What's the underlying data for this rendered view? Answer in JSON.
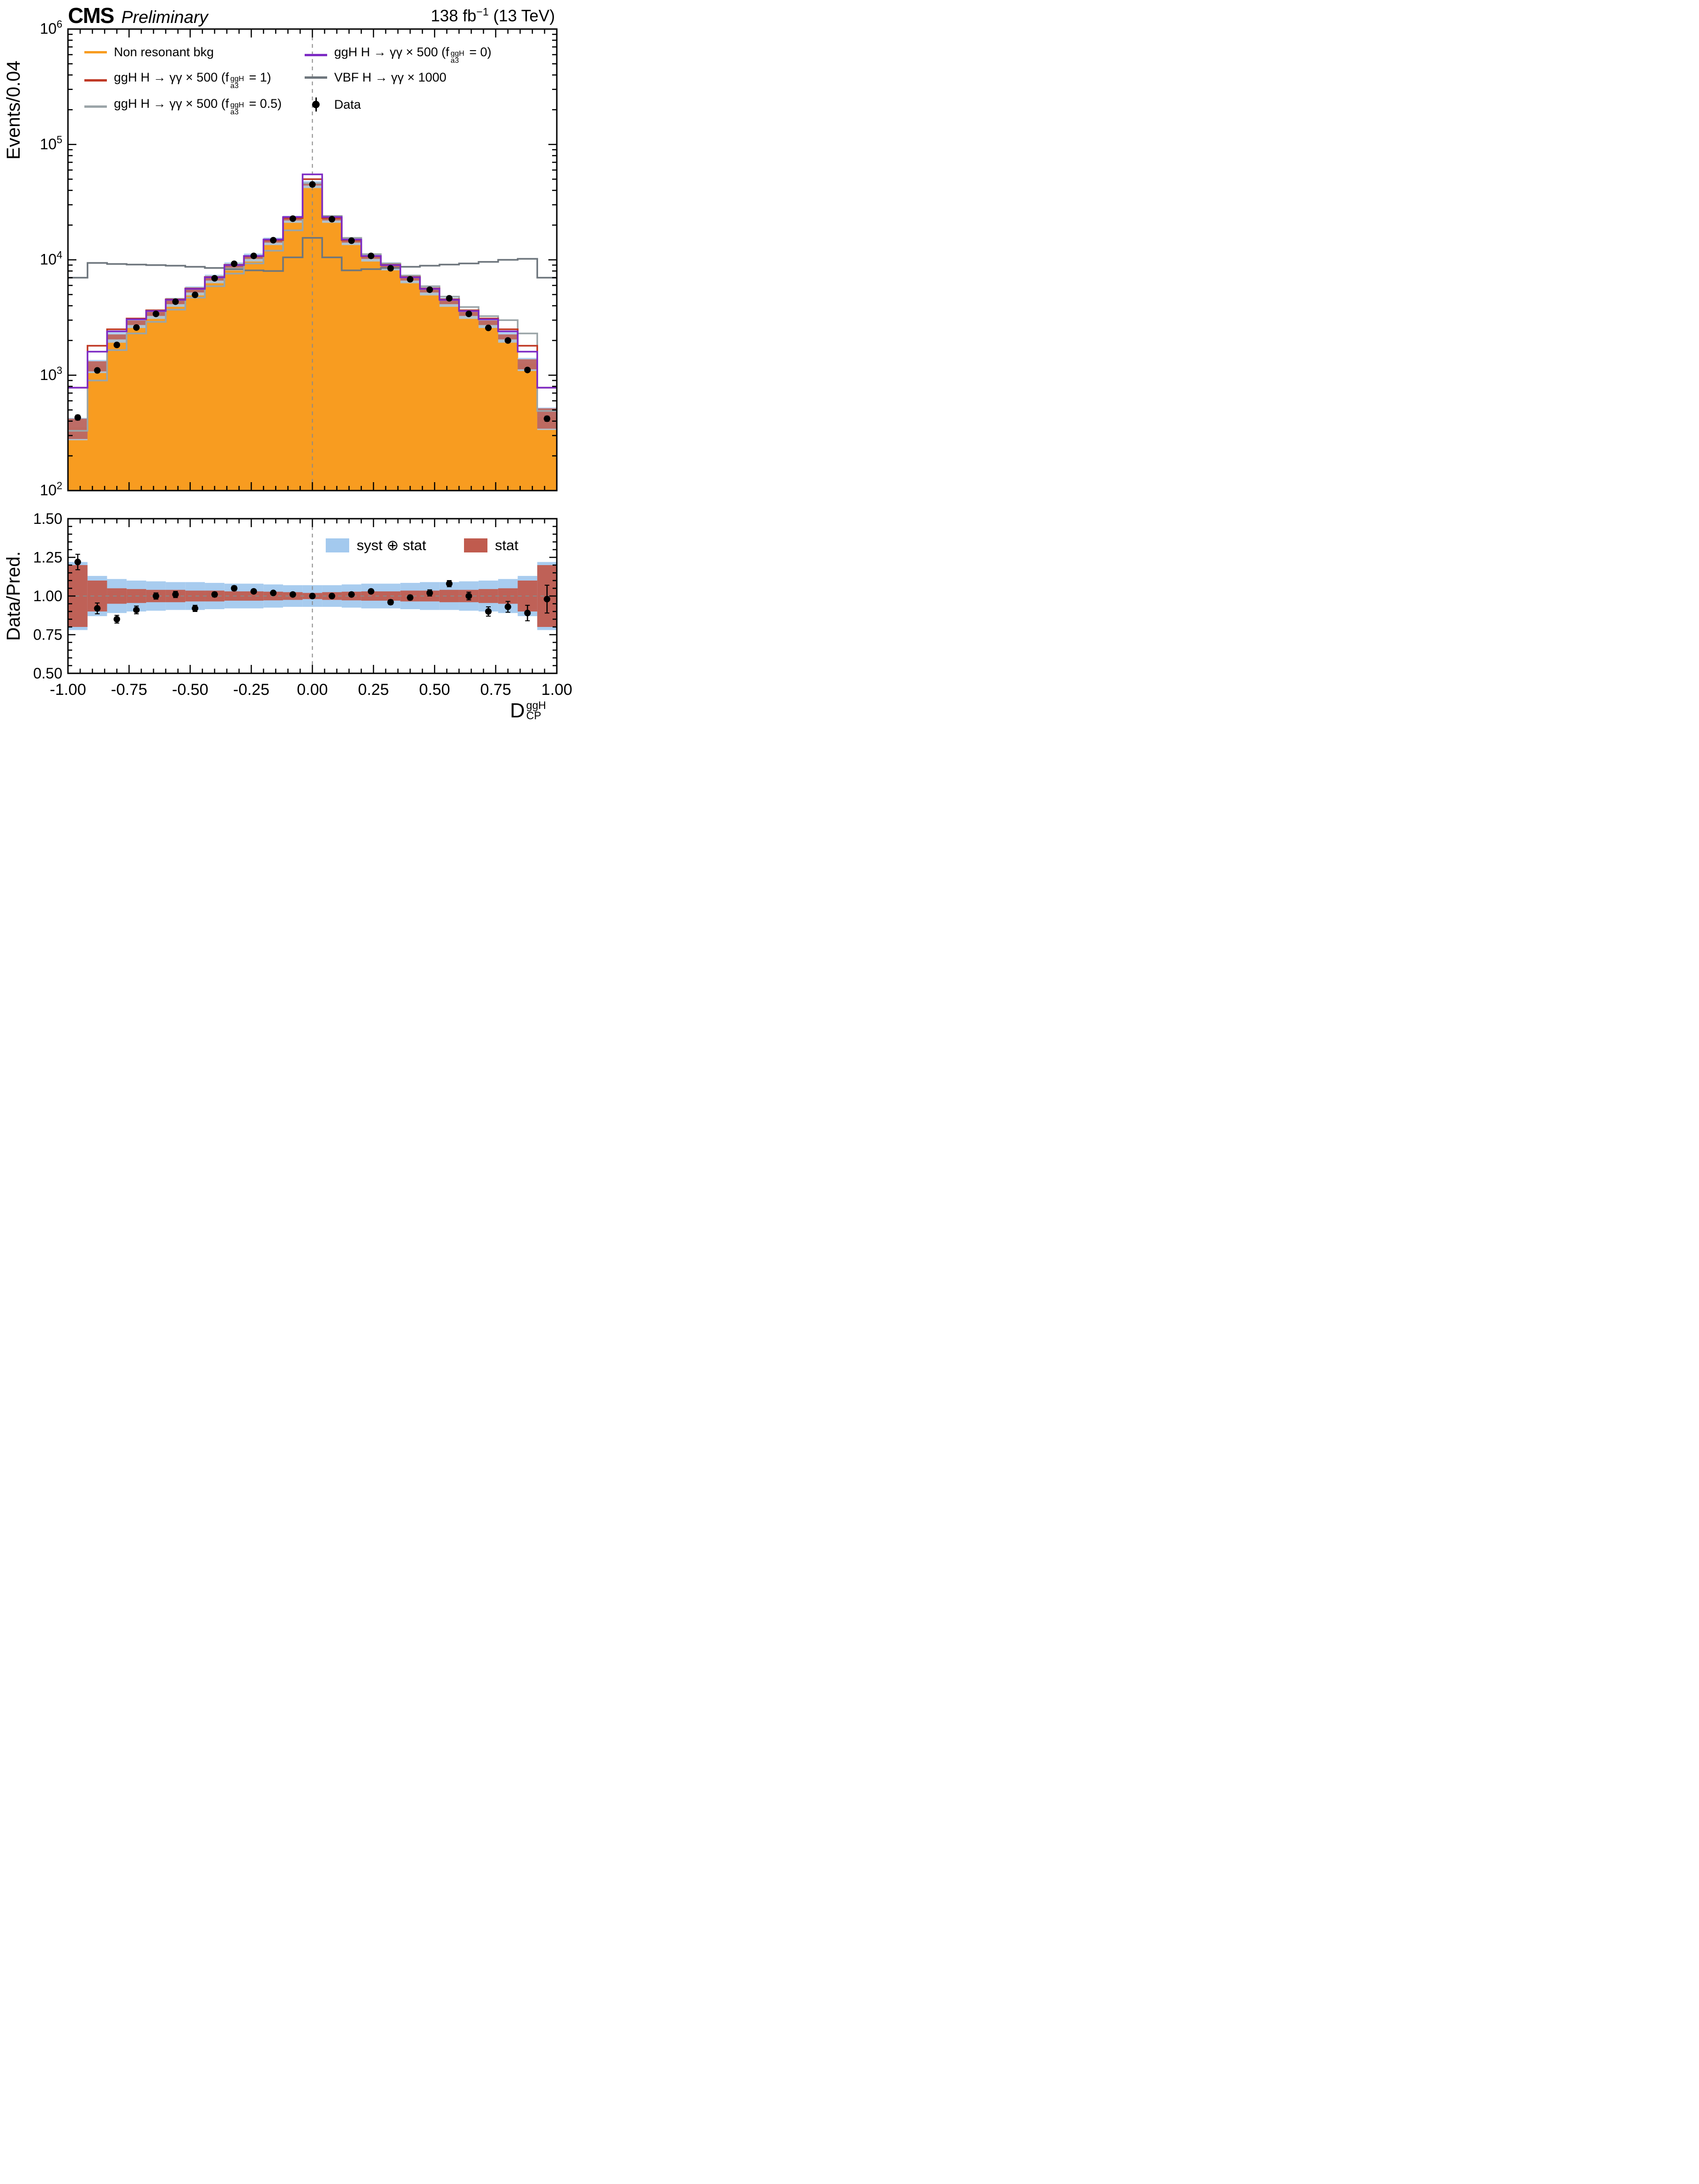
{
  "header": {
    "experiment": "CMS",
    "status": "Preliminary",
    "lumi_pre": "138 fb",
    "lumi_sup": "−1",
    "lumi_post": " (13 TeV)"
  },
  "main_axis": {
    "ylabel": "Events/0.04",
    "tick_exponents": [
      2,
      3,
      4,
      5,
      6
    ],
    "ymin": 100,
    "ymax": 1000000
  },
  "ratio_axis": {
    "ylabel": "Data/Pred.",
    "tick_values": [
      0.5,
      0.75,
      1.0,
      1.25,
      1.5
    ],
    "tick_labels": [
      "0.50",
      "0.75",
      "1.00",
      "1.25",
      "1.50"
    ],
    "ylim": [
      0.5,
      1.5
    ]
  },
  "xaxis": {
    "tick_values": [
      -1,
      -0.75,
      -0.5,
      -0.25,
      0,
      0.25,
      0.5,
      0.75,
      1
    ],
    "tick_labels": [
      "-1.00",
      "-0.75",
      "-0.50",
      "-0.25",
      "0.00",
      "0.25",
      "0.50",
      "0.75",
      "1.00"
    ],
    "title_base": "D",
    "title_sub": "CP",
    "title_sup": "ggH",
    "xlim": [
      -1,
      1
    ]
  },
  "legend": {
    "items": [
      {
        "col": 0,
        "row": 0,
        "type": "line",
        "color": "#F89C20",
        "pre": "Non resonant bkg",
        "sub": "",
        "sup": "",
        "post": ""
      },
      {
        "col": 0,
        "row": 1,
        "type": "line",
        "color": "#C03A26",
        "pre": "ggH H → γγ × 500 (f",
        "sub": "a3",
        "sup": "ggH",
        "post": " = 1)"
      },
      {
        "col": 0,
        "row": 2,
        "type": "line",
        "color": "#9BA5A8",
        "pre": "ggH H → γγ × 500 (f",
        "sub": "a3",
        "sup": "ggH",
        "post": " = 0.5)"
      },
      {
        "col": 1,
        "row": 0,
        "type": "line",
        "color": "#7D2BC4",
        "pre": "ggH H → γγ × 500 (f",
        "sub": "a3",
        "sup": "ggH",
        "post": " = 0)"
      },
      {
        "col": 1,
        "row": 1,
        "type": "line",
        "color": "#6E767D",
        "pre": "VBF H → γγ × 1000",
        "sub": "",
        "sup": "",
        "post": ""
      },
      {
        "col": 1,
        "row": 2,
        "type": "marker",
        "color": "#000000",
        "pre": "Data",
        "sub": "",
        "sup": "",
        "post": ""
      }
    ]
  },
  "ratio_legend": {
    "items": [
      {
        "label": "syst ⊕ stat",
        "color": "#A3C9EE"
      },
      {
        "label": "stat",
        "color": "#C05B4E"
      }
    ]
  },
  "chart_data": {
    "type": "histogram+ratio",
    "title": "CMS Preliminary 138 fb-1 (13 TeV)",
    "xlabel": "D_CP^ggH",
    "ylabel_main": "Events/0.04",
    "ylabel_ratio": "Data/Pred.",
    "x_range": [
      -1,
      1
    ],
    "y_range_main_log10": [
      2,
      6
    ],
    "y_range_ratio": [
      0.5,
      1.5
    ],
    "bin_edges": [
      -1.0,
      -0.92,
      -0.84,
      -0.76,
      -0.68,
      -0.6,
      -0.52,
      -0.44,
      -0.36,
      -0.28,
      -0.2,
      -0.12,
      -0.04,
      0.04,
      0.12,
      0.2,
      0.28,
      0.36,
      0.44,
      0.52,
      0.6,
      0.68,
      0.76,
      0.84,
      0.92,
      1.0
    ],
    "series": [
      {
        "name": "Non resonant bkg",
        "style": "filled-step",
        "color": "#F89C20",
        "values": [
          350,
          1200,
          2150,
          2850,
          3400,
          4300,
          5400,
          6850,
          8800,
          10500,
          14500,
          22500,
          45000,
          22500,
          14500,
          10500,
          8800,
          6850,
          5400,
          4300,
          3400,
          2850,
          2150,
          1250,
          430
        ]
      },
      {
        "name": "ggH H → γγ × 500 (fa3ggH = 1)",
        "style": "step",
        "color": "#C03A26",
        "values": [
          780,
          1800,
          2500,
          3100,
          3650,
          4550,
          5650,
          7100,
          9050,
          10750,
          14800,
          23000,
          50000,
          23000,
          14800,
          10750,
          9050,
          7100,
          5650,
          4550,
          3650,
          3100,
          2500,
          1800,
          780
        ]
      },
      {
        "name": "ggH H → γγ × 500 (fa3ggH = 0.5)",
        "style": "step",
        "color": "#9BA5A8",
        "values": [
          330,
          900,
          1650,
          2300,
          2900,
          3700,
          4700,
          5900,
          7600,
          9300,
          12000,
          18000,
          46000,
          24000,
          15500,
          11200,
          9300,
          7300,
          5900,
          4800,
          3900,
          3250,
          3000,
          2300,
          490
        ]
      },
      {
        "name": "ggH H → γγ × 500 (fa3ggH = 0)",
        "style": "step",
        "color": "#7D2BC4",
        "values": [
          780,
          1600,
          2400,
          3050,
          3600,
          4500,
          5600,
          7050,
          9000,
          10800,
          15000,
          23500,
          55000,
          23500,
          15000,
          10800,
          9000,
          7050,
          5600,
          4500,
          3600,
          3050,
          2400,
          1600,
          780
        ]
      },
      {
        "name": "VBF H → γγ × 1000",
        "style": "step",
        "color": "#6E767D",
        "values": [
          7000,
          9400,
          9200,
          9100,
          9000,
          8900,
          8700,
          8500,
          8300,
          8100,
          8000,
          10500,
          15500,
          10500,
          8100,
          8300,
          8500,
          8700,
          8900,
          9100,
          9300,
          9600,
          10000,
          10200,
          7000
        ]
      }
    ],
    "data_points": {
      "name": "Data",
      "values": [
        430,
        1100,
        1830,
        2590,
        3400,
        4340,
        4970,
        6920,
        9240,
        10820,
        14790,
        22730,
        45000,
        22500,
        14650,
        10820,
        8450,
        6780,
        5510,
        4640,
        3400,
        2570,
        2000,
        1110,
        420
      ]
    },
    "bands": {
      "syst_stat_frac": [
        0.22,
        0.13,
        0.11,
        0.1,
        0.095,
        0.09,
        0.09,
        0.085,
        0.08,
        0.08,
        0.075,
        0.07,
        0.07,
        0.07,
        0.075,
        0.08,
        0.08,
        0.085,
        0.09,
        0.09,
        0.095,
        0.1,
        0.11,
        0.13,
        0.22
      ],
      "stat_frac": [
        0.2,
        0.1,
        0.05,
        0.045,
        0.04,
        0.04,
        0.035,
        0.035,
        0.03,
        0.03,
        0.028,
        0.025,
        0.02,
        0.025,
        0.028,
        0.03,
        0.03,
        0.035,
        0.035,
        0.04,
        0.04,
        0.045,
        0.05,
        0.1,
        0.2
      ],
      "syst_stat_color": "#A3C9EE",
      "stat_color": "#C05B4E"
    },
    "ratio": {
      "values": [
        1.22,
        0.92,
        0.85,
        0.91,
        1.0,
        1.01,
        0.92,
        1.01,
        1.05,
        1.03,
        1.02,
        1.01,
        1.0,
        1.0,
        1.01,
        1.03,
        0.96,
        0.99,
        1.02,
        1.08,
        1.0,
        0.9,
        0.93,
        0.89,
        0.98
      ],
      "errors": [
        0.05,
        0.035,
        0.025,
        0.025,
        0.02,
        0.02,
        0.02,
        0.015,
        0.015,
        0.012,
        0.01,
        0.009,
        0.007,
        0.009,
        0.01,
        0.012,
        0.015,
        0.015,
        0.02,
        0.02,
        0.025,
        0.03,
        0.035,
        0.05,
        0.09
      ]
    }
  }
}
